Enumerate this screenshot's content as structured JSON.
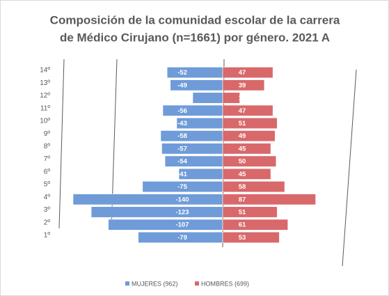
{
  "chart_data": {
    "type": "pyramid",
    "title": [
      "Composición de la comunidad escolar de la carrera",
      "de Médico Cirujano (n=1661) por género. 2021 A"
    ],
    "categories": [
      "14º",
      "13º",
      "12º",
      "11º",
      "10º",
      "9º",
      "8º",
      "7º",
      "6º",
      "5º",
      "4º",
      "3º",
      "2º",
      "1º"
    ],
    "series": [
      {
        "name": "MUJERES (962)",
        "color": "#6f9bd8",
        "values": [
          -52,
          -49,
          -28,
          -56,
          -43,
          -58,
          -57,
          -54,
          -41,
          -75,
          -140,
          -123,
          -107,
          -79
        ]
      },
      {
        "name": "HOMBRES (699)",
        "color": "#d9686b",
        "values": [
          47,
          39,
          16,
          47,
          51,
          49,
          45,
          50,
          45,
          58,
          87,
          51,
          61,
          53
        ]
      }
    ],
    "legend": "bottom"
  }
}
